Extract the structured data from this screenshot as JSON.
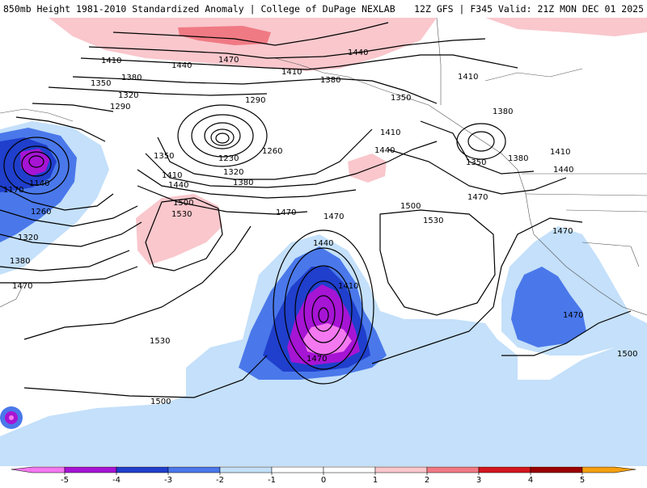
{
  "header": {
    "title_left": "850mb Height 1981-2010 Standardized Anomaly | College of DuPage NEXLAB",
    "title_right": "12Z GFS | F345 Valid: 21Z MON DEC 01 2025"
  },
  "colors": {
    "neg5": "#f478f0",
    "neg4": "#a614d4",
    "neg3": "#1f3fcc",
    "neg2": "#4a78ea",
    "neg1": "#c4e0fa",
    "pos1": "#f9c7cc",
    "pos2": "#f07a84",
    "pos3": "#d2161e",
    "pos4": "#9a0000",
    "pos5": "#f5a010",
    "contour": "#000000",
    "border": "#555555"
  },
  "contour_labels": [
    {
      "id": "c1410a",
      "text": "1410"
    },
    {
      "id": "c1440a",
      "text": "1440"
    },
    {
      "id": "c1470a",
      "text": "1470"
    },
    {
      "id": "c1410b",
      "text": "1410"
    },
    {
      "id": "c1440b",
      "text": "1440"
    },
    {
      "id": "c1410c",
      "text": "1410"
    },
    {
      "id": "c1380a",
      "text": "1380"
    },
    {
      "id": "c1380b",
      "text": "1380"
    },
    {
      "id": "c1350a",
      "text": "1350"
    },
    {
      "id": "c1320a",
      "text": "1320"
    },
    {
      "id": "c1290a",
      "text": "1290"
    },
    {
      "id": "c1290b",
      "text": "1290"
    },
    {
      "id": "c1350b",
      "text": "1350"
    },
    {
      "id": "c1380c",
      "text": "1380"
    },
    {
      "id": "c1410d",
      "text": "1410"
    },
    {
      "id": "c1440c",
      "text": "1440"
    },
    {
      "id": "c1350c",
      "text": "1350"
    },
    {
      "id": "c1380d",
      "text": "1380"
    },
    {
      "id": "c1410e",
      "text": "1410"
    },
    {
      "id": "c1440d",
      "text": "1440"
    },
    {
      "id": "c1470b",
      "text": "1470"
    },
    {
      "id": "c1230",
      "text": "1230"
    },
    {
      "id": "c1260a",
      "text": "1260"
    },
    {
      "id": "c1320b",
      "text": "1320"
    },
    {
      "id": "c1380e",
      "text": "1380"
    },
    {
      "id": "c1350d",
      "text": "1350"
    },
    {
      "id": "c1410f",
      "text": "1410"
    },
    {
      "id": "c1440e",
      "text": "1440"
    },
    {
      "id": "c1170",
      "text": "1170"
    },
    {
      "id": "c1140",
      "text": "1140"
    },
    {
      "id": "c1260b",
      "text": "1260"
    },
    {
      "id": "c1320c",
      "text": "1320"
    },
    {
      "id": "c1380f",
      "text": "1380"
    },
    {
      "id": "c1470c",
      "text": "1470"
    },
    {
      "id": "c1500a",
      "text": "1500"
    },
    {
      "id": "c1530a",
      "text": "1530"
    },
    {
      "id": "c1470d",
      "text": "1470"
    },
    {
      "id": "c1470e",
      "text": "1470"
    },
    {
      "id": "c1500b",
      "text": "1500"
    },
    {
      "id": "c1530b",
      "text": "1530"
    },
    {
      "id": "c1440f",
      "text": "1440"
    },
    {
      "id": "c1410g",
      "text": "1410"
    },
    {
      "id": "c1470f",
      "text": "1470"
    },
    {
      "id": "c1530c",
      "text": "1530"
    },
    {
      "id": "c1500c",
      "text": "1500"
    },
    {
      "id": "c1470g",
      "text": "1470"
    },
    {
      "id": "c1470h",
      "text": "1470"
    },
    {
      "id": "c1500d",
      "text": "1500"
    }
  ],
  "colorbar": {
    "ticks": [
      "-5",
      "-4",
      "-3",
      "-2",
      "-1",
      "0",
      "1",
      "2",
      "3",
      "4",
      "5"
    ]
  }
}
